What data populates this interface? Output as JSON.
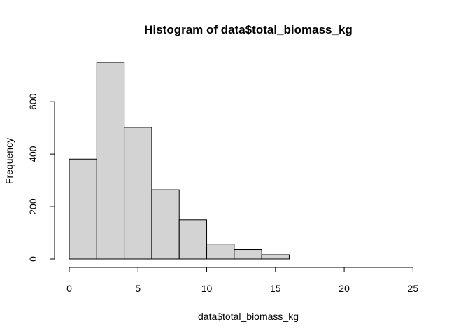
{
  "chart_data": {
    "type": "bar",
    "title": "Histogram of data$total_biomass_kg",
    "xlabel": "data$total_biomass_kg",
    "ylabel": "Frequency",
    "bins": [
      {
        "start": 0,
        "end": 2,
        "count": 381
      },
      {
        "start": 2,
        "end": 4,
        "count": 750
      },
      {
        "start": 4,
        "end": 6,
        "count": 502
      },
      {
        "start": 6,
        "end": 8,
        "count": 264
      },
      {
        "start": 8,
        "end": 10,
        "count": 150
      },
      {
        "start": 10,
        "end": 12,
        "count": 57
      },
      {
        "start": 12,
        "end": 14,
        "count": 36
      },
      {
        "start": 14,
        "end": 16,
        "count": 16
      },
      {
        "start": 16,
        "end": 18,
        "count": 0
      },
      {
        "start": 18,
        "end": 20,
        "count": 0
      },
      {
        "start": 20,
        "end": 22,
        "count": 0
      },
      {
        "start": 22,
        "end": 24,
        "count": 0
      },
      {
        "start": 24,
        "end": 26,
        "count": 0
      }
    ],
    "xlim": [
      0,
      26
    ],
    "ylim": [
      0,
      750
    ],
    "x_ticks": [
      "0",
      "5",
      "10",
      "15",
      "20",
      "25"
    ],
    "y_ticks": [
      "0",
      "200",
      "400",
      "600"
    ],
    "bar_fill": "#d3d3d3",
    "bar_stroke": "#000000",
    "grid": false
  }
}
